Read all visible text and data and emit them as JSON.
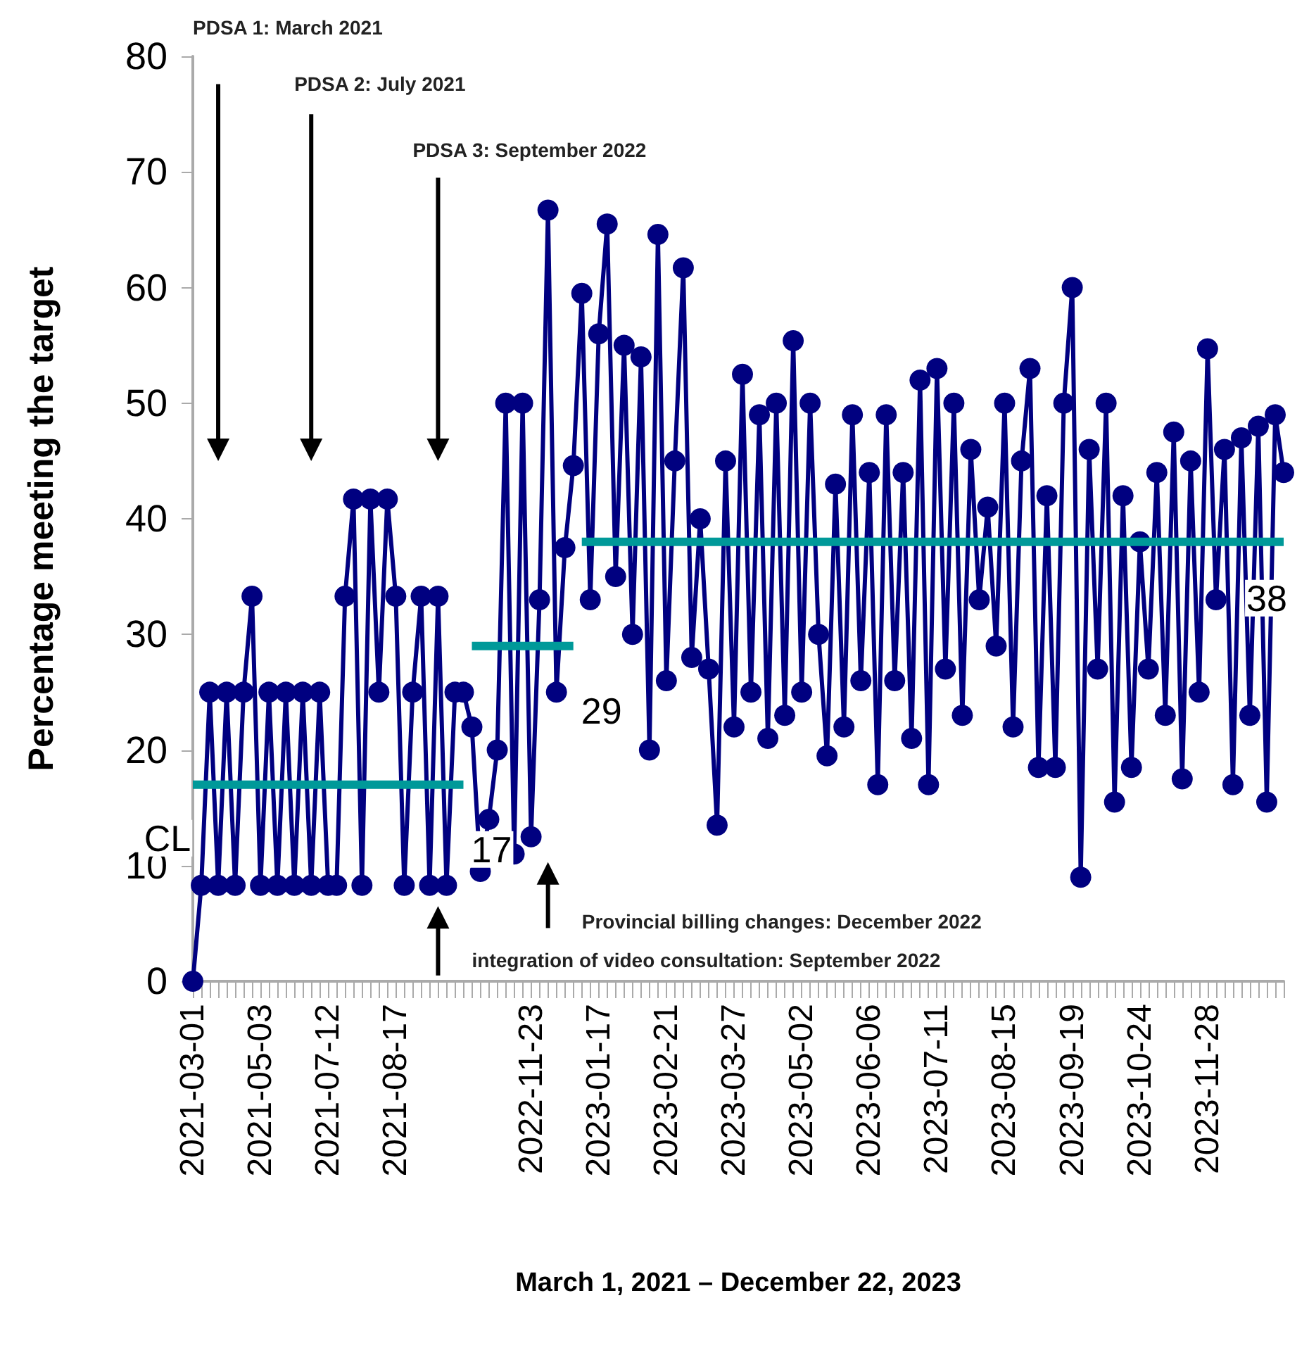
{
  "chart_data": {
    "type": "line",
    "xlabel": "March 1, 2021 – December 22, 2023",
    "ylabel": "Percentage meeting the target",
    "categories": [
      "2021-03-01",
      null,
      null,
      null,
      null,
      null,
      null,
      null,
      "2021-05-03",
      null,
      null,
      null,
      null,
      null,
      null,
      null,
      "2021-07-12",
      null,
      null,
      null,
      null,
      null,
      null,
      null,
      "2021-08-17",
      null,
      null,
      null,
      null,
      null,
      null,
      null,
      null,
      null,
      null,
      null,
      null,
      null,
      null,
      null,
      "2022-11-23",
      null,
      null,
      null,
      null,
      null,
      null,
      null,
      "2023-01-17",
      null,
      null,
      null,
      null,
      null,
      null,
      null,
      "2023-02-21",
      null,
      null,
      null,
      null,
      null,
      null,
      null,
      "2023-03-27",
      null,
      null,
      null,
      null,
      null,
      null,
      null,
      "2023-05-02",
      null,
      null,
      null,
      null,
      null,
      null,
      null,
      "2023-06-06",
      null,
      null,
      null,
      null,
      null,
      null,
      null,
      "2023-07-11",
      null,
      null,
      null,
      null,
      null,
      null,
      null,
      "2023-08-15",
      null,
      null,
      null,
      null,
      null,
      null,
      null,
      "2023-09-19",
      null,
      null,
      null,
      null,
      null,
      null,
      null,
      "2023-10-24",
      null,
      null,
      null,
      null,
      null,
      null,
      null,
      "2023-11-28",
      null,
      null,
      null,
      null,
      null,
      null,
      null,
      null,
      null
    ],
    "series": [
      {
        "type": "line",
        "color": "#000080",
        "marker": "circle",
        "values": [
          0,
          8.3,
          25,
          8.3,
          25,
          8.3,
          25,
          33.3,
          8.3,
          25,
          8.3,
          25,
          8.3,
          25,
          8.3,
          25,
          8.3,
          8.3,
          33.3,
          41.7,
          8.3,
          41.7,
          25,
          41.7,
          33.3,
          8.3,
          25,
          33.3,
          8.3,
          33.3,
          8.3,
          25,
          25,
          22,
          9.5,
          14,
          20,
          50,
          11,
          50,
          12.5,
          33,
          66.7,
          25,
          37.5,
          44.6,
          59.5,
          33,
          56,
          65.5,
          35,
          55,
          30,
          54,
          20,
          64.6,
          26,
          45,
          61.7,
          28,
          40,
          27,
          13.5,
          45,
          22,
          52.5,
          25,
          49,
          21,
          50,
          23,
          55.4,
          25,
          50,
          30,
          19.5,
          43,
          22,
          49,
          26,
          44,
          17,
          49,
          26,
          44,
          21,
          52,
          17,
          53,
          27,
          50,
          23,
          46,
          33,
          41,
          29,
          50,
          22,
          45,
          53,
          18.5,
          42,
          18.5,
          50,
          60,
          9,
          46,
          27,
          50,
          15.5,
          42,
          18.5,
          38,
          27,
          44,
          23,
          47.5,
          17.5,
          45,
          25,
          54.7,
          33,
          46,
          17,
          47,
          23,
          48,
          15.5,
          49,
          44
        ]
      },
      {
        "type": "line",
        "color": "#009999",
        "marker": "none",
        "values": [
          17,
          17,
          17,
          17,
          17,
          17,
          17,
          17,
          17,
          17,
          17,
          17,
          17,
          17,
          17,
          17,
          17,
          17,
          17,
          17,
          17,
          17,
          17,
          17,
          17,
          17,
          17,
          17,
          17,
          17,
          17,
          17,
          17,
          null,
          null,
          null,
          null,
          null,
          null,
          null,
          null,
          null,
          null,
          null,
          null,
          null,
          null,
          null,
          null,
          null,
          null,
          null,
          null,
          null,
          null,
          null,
          null,
          null,
          null,
          null,
          null,
          null,
          null,
          null,
          null,
          null,
          null,
          null,
          null,
          null,
          null,
          null,
          null,
          null,
          null,
          null,
          null,
          null,
          null,
          null,
          null,
          null,
          null,
          null,
          null,
          null,
          null,
          null,
          null,
          null,
          null,
          null,
          null,
          null,
          null,
          null,
          null,
          null,
          null,
          null,
          null,
          null,
          null,
          null,
          null,
          null,
          null,
          null,
          null,
          null,
          null,
          null,
          null,
          null,
          null,
          null,
          null,
          null,
          null,
          null,
          null,
          null,
          null,
          null,
          null,
          null,
          null,
          null,
          null,
          null
        ],
        "value_labels": [
          "CL",
          null,
          null,
          null,
          null,
          null,
          null,
          null,
          null,
          null,
          null,
          null,
          null,
          null,
          null,
          null,
          null,
          null,
          null,
          null,
          null,
          null,
          null,
          null,
          null,
          null,
          null,
          null,
          null,
          null,
          null,
          null,
          "17",
          null,
          null,
          null,
          null,
          null,
          null,
          null,
          null,
          null,
          null,
          null,
          null,
          null,
          null,
          null,
          null,
          null,
          null,
          null,
          null,
          null,
          null,
          null,
          null,
          null,
          null,
          null,
          null,
          null,
          null,
          null,
          null,
          null,
          null,
          null,
          null,
          null,
          null,
          null,
          null,
          null,
          null,
          null,
          null,
          null,
          null,
          null,
          null,
          null,
          null,
          null,
          null,
          null,
          null,
          null,
          null,
          null,
          null,
          null,
          null,
          null,
          null,
          null,
          null,
          null,
          null,
          null,
          null,
          null,
          null,
          null,
          null,
          null,
          null,
          null,
          null,
          null,
          null,
          null,
          null,
          null,
          null,
          null,
          null,
          null,
          null,
          null,
          null,
          null,
          null,
          null,
          null,
          null,
          null,
          null,
          null,
          null
        ]
      },
      {
        "type": "line",
        "color": "#009999",
        "marker": "none",
        "values": [
          null,
          null,
          null,
          null,
          null,
          null,
          null,
          null,
          null,
          null,
          null,
          null,
          null,
          null,
          null,
          null,
          null,
          null,
          null,
          null,
          null,
          null,
          null,
          null,
          null,
          null,
          null,
          null,
          null,
          null,
          null,
          null,
          null,
          29,
          29,
          29,
          29,
          29,
          29,
          29,
          29,
          29,
          29,
          29,
          29,
          29,
          null,
          null,
          null,
          null,
          null,
          null,
          null,
          null,
          null,
          null,
          null,
          null,
          null,
          null,
          null,
          null,
          null,
          null,
          null,
          null,
          null,
          null,
          null,
          null,
          null,
          null,
          null,
          null,
          null,
          null,
          null,
          null,
          null,
          null,
          null,
          null,
          null,
          null,
          null,
          null,
          null,
          null,
          null,
          null,
          null,
          null,
          null,
          null,
          null,
          null,
          null,
          null,
          null,
          null,
          null,
          null,
          null,
          null,
          null,
          null,
          null,
          null,
          null,
          null,
          null,
          null,
          null,
          null,
          null,
          null,
          null,
          null,
          null,
          null,
          null,
          null,
          null,
          null,
          null,
          null,
          null,
          null,
          null,
          null
        ],
        "value_labels": [
          null,
          null,
          null,
          null,
          null,
          null,
          null,
          null,
          null,
          null,
          null,
          null,
          null,
          null,
          null,
          null,
          null,
          null,
          null,
          null,
          null,
          null,
          null,
          null,
          null,
          null,
          null,
          null,
          null,
          null,
          null,
          null,
          null,
          null,
          null,
          null,
          null,
          null,
          null,
          null,
          null,
          null,
          null,
          null,
          null,
          "29",
          null,
          null,
          null,
          null,
          null,
          null,
          null,
          null,
          null,
          null,
          null,
          null,
          null,
          null,
          null,
          null,
          null,
          null,
          null,
          null,
          null,
          null,
          null,
          null,
          null,
          null,
          null,
          null,
          null,
          null,
          null,
          null,
          null,
          null,
          null,
          null,
          null,
          null,
          null,
          null,
          null,
          null,
          null,
          null,
          null,
          null,
          null,
          null,
          null,
          null,
          null,
          null,
          null,
          null,
          null,
          null,
          null,
          null,
          null,
          null,
          null,
          null,
          null,
          null,
          null,
          null,
          null,
          null,
          null,
          null,
          null,
          null,
          null,
          null,
          null,
          null,
          null,
          null,
          null,
          null,
          null,
          null,
          null,
          null
        ]
      },
      {
        "type": "line",
        "color": "#009999",
        "marker": "none",
        "values": [
          null,
          null,
          null,
          null,
          null,
          null,
          null,
          null,
          null,
          null,
          null,
          null,
          null,
          null,
          null,
          null,
          null,
          null,
          null,
          null,
          null,
          null,
          null,
          null,
          null,
          null,
          null,
          null,
          null,
          null,
          null,
          null,
          null,
          null,
          null,
          null,
          null,
          null,
          null,
          null,
          null,
          null,
          null,
          null,
          null,
          null,
          38,
          38,
          38,
          38,
          38,
          38,
          38,
          38,
          38,
          38,
          38,
          38,
          38,
          38,
          38,
          38,
          38,
          38,
          38,
          38,
          38,
          38,
          38,
          38,
          38,
          38,
          38,
          38,
          38,
          38,
          38,
          38,
          38,
          38,
          38,
          38,
          38,
          38,
          38,
          38,
          38,
          38,
          38,
          38,
          38,
          38,
          38,
          38,
          38,
          38,
          38,
          38,
          38,
          38,
          38,
          38,
          38,
          38,
          38,
          38,
          38,
          38,
          38,
          38,
          38,
          38,
          38,
          38,
          38,
          38,
          38,
          38,
          38,
          38,
          38,
          38,
          38,
          38,
          38,
          38,
          38,
          38,
          38,
          38
        ],
        "value_labels": [
          null,
          null,
          null,
          null,
          null,
          null,
          null,
          null,
          null,
          null,
          null,
          null,
          null,
          null,
          null,
          null,
          null,
          null,
          null,
          null,
          null,
          null,
          null,
          null,
          null,
          null,
          null,
          null,
          null,
          null,
          null,
          null,
          null,
          null,
          null,
          null,
          null,
          null,
          null,
          null,
          null,
          null,
          null,
          null,
          null,
          null,
          null,
          null,
          null,
          null,
          null,
          null,
          null,
          null,
          null,
          null,
          null,
          null,
          null,
          null,
          null,
          null,
          null,
          null,
          null,
          null,
          null,
          null,
          null,
          null,
          null,
          null,
          null,
          null,
          null,
          null,
          null,
          null,
          null,
          null,
          null,
          null,
          null,
          null,
          null,
          null,
          null,
          null,
          null,
          null,
          null,
          null,
          null,
          null,
          null,
          null,
          null,
          null,
          null,
          null,
          null,
          null,
          null,
          null,
          null,
          null,
          null,
          null,
          null,
          null,
          null,
          null,
          null,
          null,
          null,
          null,
          null,
          null,
          null,
          null,
          null,
          null,
          null,
          null,
          null,
          null,
          null,
          null,
          null,
          "38"
        ]
      }
    ],
    "annotations": [
      "PDSA 1: March 2021",
      "PDSA 2: July 2021",
      "PDSA 3: September 2022",
      "Provincial billing changes: December 2022",
      "integration of video consultation: September 2022"
    ],
    "ylim": [
      0,
      80
    ],
    "yticks": [
      0,
      10,
      20,
      30,
      40,
      50,
      60,
      70,
      80
    ],
    "grid": false
  }
}
